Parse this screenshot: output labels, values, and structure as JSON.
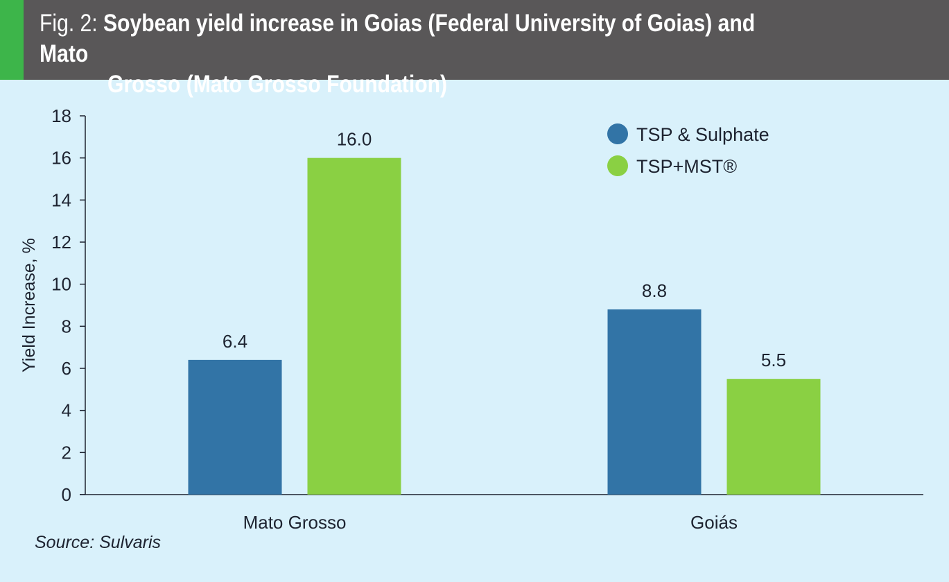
{
  "header": {
    "prefix": "Fig. 2:",
    "title_line1": "Soybean yield increase in Goias (Federal University of Goias) and Mato",
    "title_line2": "Grosso (Mato Grosso Foundation)",
    "accent_color": "#3db54a",
    "background_color": "#595758"
  },
  "source": "Source: Sulvaris",
  "chart_data": {
    "type": "bar",
    "title": "Soybean yield increase in Goias (Federal University of Goias) and Mato Grosso (Mato Grosso Foundation)",
    "xlabel": "",
    "ylabel": "Yield Increase, %",
    "ylim": [
      0,
      18
    ],
    "yticks": [
      0,
      2,
      4,
      6,
      8,
      10,
      12,
      14,
      16,
      18
    ],
    "grid": false,
    "legend_position": "top-right",
    "categories": [
      "Mato Grosso",
      "Goiás"
    ],
    "series": [
      {
        "name": "TSP & Sulphate",
        "color": "#3274a6",
        "values": [
          6.4,
          8.8
        ],
        "labels": [
          "6.4",
          "8.8"
        ]
      },
      {
        "name": "TSP+MST®",
        "color": "#8ad043",
        "values": [
          16.0,
          5.5
        ],
        "labels": [
          "16.0",
          "5.5"
        ]
      }
    ]
  }
}
